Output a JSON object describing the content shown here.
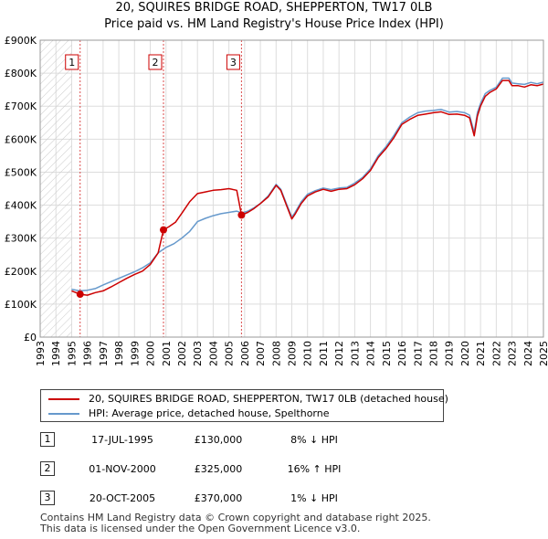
{
  "chart_data": {
    "type": "line",
    "title": "20, SQUIRES BRIDGE ROAD, SHEPPERTON, TW17 0LB",
    "subtitle": "Price paid vs. HM Land Registry's House Price Index (HPI)",
    "xlim": [
      1993,
      2025
    ],
    "ylim": [
      0,
      900000
    ],
    "x_ticks": [
      1993,
      1994,
      1995,
      1996,
      1997,
      1998,
      1999,
      2000,
      2001,
      2002,
      2003,
      2004,
      2005,
      2006,
      2007,
      2008,
      2009,
      2010,
      2011,
      2012,
      2013,
      2014,
      2015,
      2016,
      2017,
      2018,
      2019,
      2020,
      2021,
      2022,
      2023,
      2024,
      2025
    ],
    "y_ticks": [
      {
        "value": 0,
        "label": "£0"
      },
      {
        "value": 100000,
        "label": "£100K"
      },
      {
        "value": 200000,
        "label": "£200K"
      },
      {
        "value": 300000,
        "label": "£300K"
      },
      {
        "value": 400000,
        "label": "£400K"
      },
      {
        "value": 500000,
        "label": "£500K"
      },
      {
        "value": 600000,
        "label": "£600K"
      },
      {
        "value": 700000,
        "label": "£700K"
      },
      {
        "value": 800000,
        "label": "£800K"
      },
      {
        "value": 900000,
        "label": "£900K"
      }
    ],
    "hatched_until": 1995.0,
    "series": [
      {
        "name": "20, SQUIRES BRIDGE ROAD, SHEPPERTON, TW17 0LB (detached house)",
        "color": "#cc0000",
        "x": [
          1995.0,
          1995.54,
          1996.0,
          1996.5,
          1997.0,
          1997.5,
          1998.0,
          1998.5,
          1999.0,
          1999.5,
          2000.0,
          2000.5,
          2000.84,
          2001.2,
          2001.6,
          2002.0,
          2002.5,
          2003.0,
          2003.5,
          2004.0,
          2004.5,
          2005.0,
          2005.5,
          2005.8,
          2006.2,
          2006.6,
          2007.0,
          2007.5,
          2008.0,
          2008.3,
          2008.7,
          2009.0,
          2009.2,
          2009.6,
          2010.0,
          2010.5,
          2011.0,
          2011.5,
          2012.0,
          2012.5,
          2013.0,
          2013.5,
          2014.0,
          2014.5,
          2015.0,
          2015.5,
          2016.0,
          2016.5,
          2017.0,
          2017.5,
          2018.0,
          2018.5,
          2019.0,
          2019.5,
          2020.0,
          2020.3,
          2020.6,
          2020.8,
          2021.0,
          2021.3,
          2021.6,
          2022.0,
          2022.4,
          2022.8,
          2023.0,
          2023.4,
          2023.8,
          2024.2,
          2024.6,
          2025.0
        ],
        "y": [
          140000,
          130000,
          127000,
          135000,
          140000,
          152000,
          165000,
          178000,
          190000,
          200000,
          220000,
          255000,
          325000,
          335000,
          348000,
          375000,
          410000,
          435000,
          440000,
          445000,
          447000,
          450000,
          445000,
          370000,
          378000,
          390000,
          405000,
          425000,
          460000,
          445000,
          395000,
          358000,
          372000,
          405000,
          428000,
          440000,
          448000,
          442000,
          448000,
          450000,
          462000,
          480000,
          505000,
          545000,
          572000,
          605000,
          645000,
          660000,
          672000,
          676000,
          680000,
          683000,
          675000,
          676000,
          672000,
          665000,
          610000,
          670000,
          700000,
          730000,
          742000,
          752000,
          778000,
          778000,
          762000,
          762000,
          758000,
          765000,
          762000,
          767000
        ]
      },
      {
        "name": "HPI: Average price, detached house, Spelthorne",
        "color": "#6699cc",
        "x": [
          1995.0,
          1995.5,
          1996.0,
          1996.5,
          1997.0,
          1997.5,
          1998.0,
          1998.5,
          1999.0,
          1999.5,
          2000.0,
          2000.5,
          2001.0,
          2001.5,
          2002.0,
          2002.5,
          2003.0,
          2003.5,
          2004.0,
          2004.5,
          2005.0,
          2005.5,
          2005.8,
          2006.2,
          2006.6,
          2007.0,
          2007.5,
          2008.0,
          2008.3,
          2008.7,
          2009.0,
          2009.2,
          2009.6,
          2010.0,
          2010.5,
          2011.0,
          2011.5,
          2012.0,
          2012.5,
          2013.0,
          2013.5,
          2014.0,
          2014.5,
          2015.0,
          2015.5,
          2016.0,
          2016.5,
          2017.0,
          2017.5,
          2018.0,
          2018.5,
          2019.0,
          2019.5,
          2020.0,
          2020.3,
          2020.6,
          2020.8,
          2021.0,
          2021.3,
          2021.6,
          2022.0,
          2022.4,
          2022.8,
          2023.0,
          2023.4,
          2023.8,
          2024.2,
          2024.6,
          2025.0
        ],
        "y": [
          145000,
          140000,
          142000,
          147000,
          158000,
          168000,
          178000,
          188000,
          198000,
          210000,
          225000,
          255000,
          272000,
          283000,
          300000,
          320000,
          350000,
          360000,
          368000,
          374000,
          378000,
          382000,
          376000,
          382000,
          392000,
          405000,
          428000,
          463000,
          448000,
          400000,
          364000,
          377000,
          410000,
          433000,
          444000,
          452000,
          447000,
          452000,
          454000,
          467000,
          484000,
          510000,
          550000,
          578000,
          612000,
          650000,
          667000,
          680000,
          685000,
          687000,
          690000,
          682000,
          684000,
          680000,
          673000,
          620000,
          680000,
          708000,
          738000,
          748000,
          757000,
          785000,
          785000,
          770000,
          768000,
          766000,
          772000,
          768000,
          773000
        ]
      }
    ],
    "sales": [
      {
        "number": "1",
        "year": 1995.54,
        "price": 130000
      },
      {
        "number": "2",
        "year": 2000.84,
        "price": 325000
      },
      {
        "number": "3",
        "year": 2005.8,
        "price": 370000
      }
    ]
  },
  "legend": [
    {
      "label": "20, SQUIRES BRIDGE ROAD, SHEPPERTON, TW17 0LB (detached house)",
      "color": "#cc0000"
    },
    {
      "label": "HPI: Average price, detached house, Spelthorne",
      "color": "#6699cc"
    }
  ],
  "sales_table": [
    {
      "number": "1",
      "date": "17-JUL-1995",
      "price": "£130,000",
      "hpi": "8% ↓ HPI"
    },
    {
      "number": "2",
      "date": "01-NOV-2000",
      "price": "£325,000",
      "hpi": "16% ↑ HPI"
    },
    {
      "number": "3",
      "date": "20-OCT-2005",
      "price": "£370,000",
      "hpi": "1% ↓ HPI"
    }
  ],
  "footer": {
    "line1": "Contains HM Land Registry data © Crown copyright and database right 2025.",
    "line2": "This data is licensed under the Open Government Licence v3.0."
  },
  "colors": {
    "sale_marker": "#cc0000",
    "dashed_line": "#cc0000",
    "grid": "#dddddd",
    "hatch": "#cccccc"
  }
}
